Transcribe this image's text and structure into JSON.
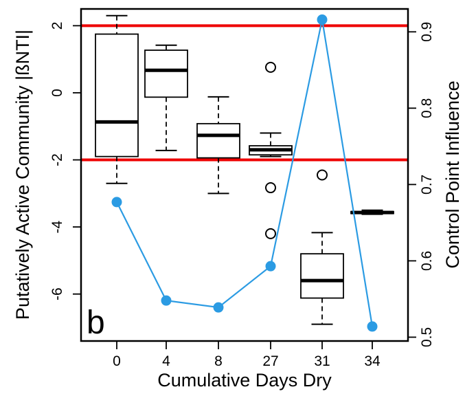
{
  "panel_label": "b",
  "chart_data": {
    "type": "box",
    "xlabel": "Cumulative Days Dry",
    "ylabel_left": "Putatively Active Community |ßNTI|",
    "ylabel_right": "Control Point Influence",
    "categories": [
      "0",
      "4",
      "8",
      "27",
      "31",
      "34"
    ],
    "left_axis": {
      "ylim": [
        -7.4,
        2.5
      ],
      "ticks": [
        2,
        0,
        -2,
        -4,
        -6
      ]
    },
    "right_axis": {
      "ylim": [
        0.495,
        0.93
      ],
      "ticks": [
        0.9,
        0.8,
        0.7,
        0.6,
        0.5
      ]
    },
    "reference_lines": [
      2,
      -2
    ],
    "reference_line_color": "#ee0000",
    "series_color": "#2b9be3",
    "boxes": [
      {
        "category": "0",
        "whisker_low": -2.7,
        "q1": -1.9,
        "median": -0.87,
        "q3": 1.75,
        "whisker_high": 2.3,
        "outliers": []
      },
      {
        "category": "4",
        "whisker_low": -1.72,
        "q1": -0.13,
        "median": 0.67,
        "q3": 1.27,
        "whisker_high": 1.42,
        "outliers": []
      },
      {
        "category": "8",
        "whisker_low": -3.0,
        "q1": -1.94,
        "median": -1.27,
        "q3": -0.92,
        "whisker_high": -0.12,
        "outliers": []
      },
      {
        "category": "27",
        "whisker_low": -1.9,
        "q1": -1.85,
        "median": -1.7,
        "q3": -1.58,
        "whisker_high": -1.2,
        "outliers": [
          0.76,
          -2.83,
          -4.2
        ]
      },
      {
        "category": "31",
        "whisker_low": -6.9,
        "q1": -6.12,
        "median": -5.6,
        "q3": -4.8,
        "whisker_high": -4.17,
        "outliers": [
          -2.45
        ]
      },
      {
        "category": "34",
        "whisker_low": -3.62,
        "q1": -3.6,
        "median": -3.57,
        "q3": -3.54,
        "whisker_high": -3.5,
        "outliers": []
      }
    ],
    "line_series": {
      "axis": "right",
      "values": [
        0.677,
        0.548,
        0.539,
        0.593,
        0.916,
        0.514
      ]
    }
  }
}
